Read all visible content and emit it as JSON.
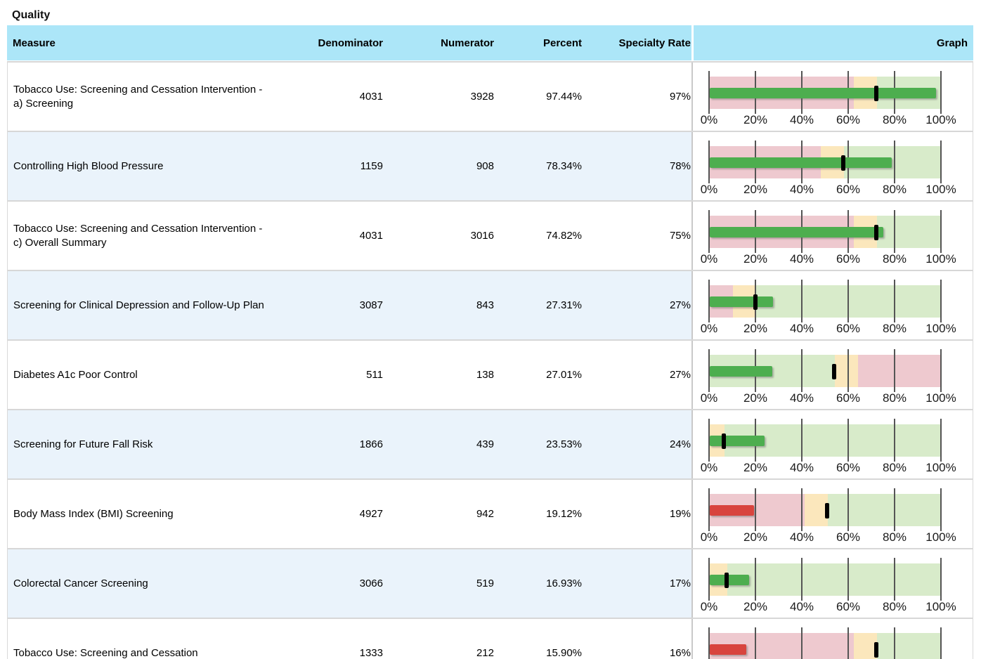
{
  "page_title": "Quality",
  "table": {
    "columns": {
      "measure": "Measure",
      "denominator": "Denominator",
      "numerator": "Numerator",
      "percent": "Percent",
      "specialty_rate": "Specialty Rate",
      "graph": "Graph"
    },
    "axis": {
      "ticks_pct": [
        0,
        20,
        40,
        60,
        80,
        100
      ],
      "labels": [
        "0%",
        "20%",
        "40%",
        "60%",
        "80%",
        "100%"
      ]
    },
    "colors": {
      "header_bg": "#ace6f8",
      "row_alt_bg": "#eaf3fb",
      "zone_red": "#eec9cf",
      "zone_yellow": "#fbe7bc",
      "zone_green": "#d8ebca",
      "bar_green": "#4dae4f",
      "bar_red": "#d8443e",
      "gridline": "#555555",
      "benchmark_tick": "#000000"
    },
    "rows": [
      {
        "measure": "Tobacco Use: Screening and Cessation Intervention - a) Screening",
        "denominator": "4031",
        "numerator": "3928",
        "percent": "97.44%",
        "specialty_rate": "97%",
        "chart": {
          "value_pct": 97.44,
          "bar_color": "green",
          "benchmark_pct": 72,
          "zones": [
            {
              "color": "red",
              "from": 0,
              "to": 62
            },
            {
              "color": "yellow",
              "from": 62,
              "to": 72
            },
            {
              "color": "green",
              "from": 72,
              "to": 100
            }
          ]
        }
      },
      {
        "measure": "Controlling High Blood Pressure",
        "denominator": "1159",
        "numerator": "908",
        "percent": "78.34%",
        "specialty_rate": "78%",
        "chart": {
          "value_pct": 78.34,
          "bar_color": "green",
          "benchmark_pct": 58,
          "zones": [
            {
              "color": "red",
              "from": 0,
              "to": 48
            },
            {
              "color": "yellow",
              "from": 48,
              "to": 58
            },
            {
              "color": "green",
              "from": 58,
              "to": 100
            }
          ]
        }
      },
      {
        "measure": "Tobacco Use: Screening and Cessation Intervention - c) Overall Summary",
        "denominator": "4031",
        "numerator": "3016",
        "percent": "74.82%",
        "specialty_rate": "75%",
        "chart": {
          "value_pct": 74.82,
          "bar_color": "green",
          "benchmark_pct": 72,
          "zones": [
            {
              "color": "red",
              "from": 0,
              "to": 62
            },
            {
              "color": "yellow",
              "from": 62,
              "to": 72
            },
            {
              "color": "green",
              "from": 72,
              "to": 100
            }
          ]
        }
      },
      {
        "measure": "Screening for Clinical Depression and Follow-Up Plan",
        "denominator": "3087",
        "numerator": "843",
        "percent": "27.31%",
        "specialty_rate": "27%",
        "chart": {
          "value_pct": 27.31,
          "bar_color": "green",
          "benchmark_pct": 20,
          "zones": [
            {
              "color": "red",
              "from": 0,
              "to": 10
            },
            {
              "color": "yellow",
              "from": 10,
              "to": 20
            },
            {
              "color": "green",
              "from": 20,
              "to": 100
            }
          ]
        }
      },
      {
        "measure": "Diabetes A1c Poor Control",
        "denominator": "511",
        "numerator": "138",
        "percent": "27.01%",
        "specialty_rate": "27%",
        "chart": {
          "value_pct": 27.01,
          "bar_color": "green",
          "benchmark_pct": 54,
          "zones": [
            {
              "color": "green",
              "from": 0,
              "to": 54
            },
            {
              "color": "yellow",
              "from": 54,
              "to": 64
            },
            {
              "color": "red",
              "from": 64,
              "to": 100
            }
          ]
        }
      },
      {
        "measure": "Screening for Future Fall Risk",
        "denominator": "1866",
        "numerator": "439",
        "percent": "23.53%",
        "specialty_rate": "24%",
        "chart": {
          "value_pct": 23.53,
          "bar_color": "green",
          "benchmark_pct": 6.5,
          "zones": [
            {
              "color": "yellow",
              "from": 0,
              "to": 6.5
            },
            {
              "color": "green",
              "from": 6.5,
              "to": 100
            }
          ]
        }
      },
      {
        "measure": "Body Mass Index (BMI) Screening",
        "denominator": "4927",
        "numerator": "942",
        "percent": "19.12%",
        "specialty_rate": "19%",
        "chart": {
          "value_pct": 19.12,
          "bar_color": "red",
          "benchmark_pct": 51,
          "zones": [
            {
              "color": "red",
              "from": 0,
              "to": 41
            },
            {
              "color": "yellow",
              "from": 41,
              "to": 51
            },
            {
              "color": "green",
              "from": 51,
              "to": 100
            }
          ]
        }
      },
      {
        "measure": "Colorectal Cancer Screening",
        "denominator": "3066",
        "numerator": "519",
        "percent": "16.93%",
        "specialty_rate": "17%",
        "chart": {
          "value_pct": 16.93,
          "bar_color": "green",
          "benchmark_pct": 7.5,
          "zones": [
            {
              "color": "yellow",
              "from": 0,
              "to": 7.5
            },
            {
              "color": "green",
              "from": 7.5,
              "to": 100
            }
          ]
        }
      },
      {
        "measure": "Tobacco Use: Screening and Cessation",
        "denominator": "1333",
        "numerator": "212",
        "percent": "15.90%",
        "specialty_rate": "16%",
        "chart": {
          "value_pct": 15.9,
          "bar_color": "red",
          "benchmark_pct": 72,
          "zones": [
            {
              "color": "red",
              "from": 0,
              "to": 62
            },
            {
              "color": "yellow",
              "from": 62,
              "to": 72
            },
            {
              "color": "green",
              "from": 72,
              "to": 100
            }
          ]
        }
      }
    ]
  }
}
